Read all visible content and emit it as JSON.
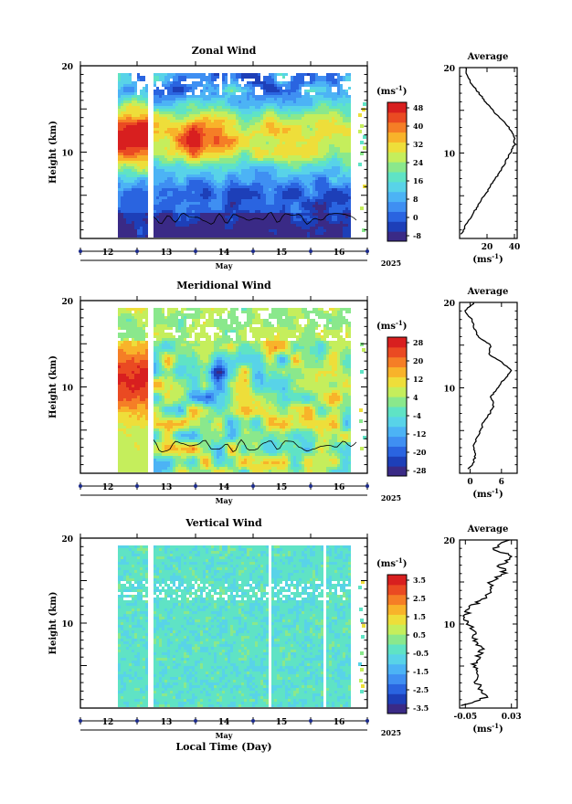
{
  "colors": {
    "zonal_scale": [
      "#3a2a86",
      "#1d3fb8",
      "#2a64e0",
      "#3f8ff2",
      "#4cb3f5",
      "#58d3e8",
      "#5fe3c5",
      "#8ae88c",
      "#c5ee5c",
      "#eede3a",
      "#f8b32a",
      "#f57e26",
      "#ea4a22",
      "#d81f1f"
    ],
    "meridional_scale": [
      "#3a2a86",
      "#1d3fb8",
      "#2a64e0",
      "#3f8ff2",
      "#4cb3f5",
      "#58d3e8",
      "#5fe3c5",
      "#8ae88c",
      "#c5ee5c",
      "#eede3a",
      "#f8b32a",
      "#f57e26",
      "#ea4a22",
      "#d81f1f"
    ],
    "vertical_scale": [
      "#3a2a86",
      "#1d3fb8",
      "#2a64e0",
      "#3f8ff2",
      "#4cb3f5",
      "#58d3e8",
      "#5fe3c5",
      "#8ae88c",
      "#c5ee5c",
      "#eede3a",
      "#f8b32a",
      "#f57e26",
      "#ea4a22",
      "#d81f1f"
    ],
    "day_marker": "#1b2a8a"
  },
  "chart_data": [
    {
      "type": "heatmap",
      "title": "Zonal Wind",
      "ylabel": "Height (km)",
      "ylim": [
        0,
        20
      ],
      "yticks": [
        "20",
        "10"
      ],
      "day_labels": [
        "12",
        "13",
        "14",
        "15",
        "16"
      ],
      "month_label": "May",
      "year_label": "2025",
      "colorbar": {
        "unit": "(ms",
        "unit_exp": "-1",
        "unit_close": ")",
        "labels": [
          "48",
          "40",
          "32",
          "24",
          "16",
          "8",
          "0",
          "-8"
        ],
        "range": [
          -8,
          48
        ]
      },
      "average": {
        "title": "Average",
        "xlabel": "(ms",
        "xlabel_exp": "-1",
        "xlabel_close": ")",
        "xticks": [
          "20",
          "40"
        ],
        "xlim": [
          0,
          42
        ],
        "heights": [
          0.5,
          2,
          4,
          6,
          8,
          10,
          11,
          12,
          13,
          14,
          15,
          16,
          17,
          18,
          19,
          20
        ],
        "values": [
          1,
          6,
          14,
          22,
          30,
          37,
          40,
          40,
          36,
          30,
          24,
          19,
          14,
          9,
          6,
          4
        ]
      }
    },
    {
      "type": "heatmap",
      "title": "Meridional Wind",
      "ylabel": "Height (km)",
      "ylim": [
        0,
        20
      ],
      "yticks": [
        "20",
        "10"
      ],
      "day_labels": [
        "12",
        "13",
        "14",
        "15",
        "16"
      ],
      "month_label": "May",
      "year_label": "2025",
      "colorbar": {
        "unit": "(ms",
        "unit_exp": "-1",
        "unit_close": ")",
        "labels": [
          "28",
          "20",
          "12",
          "4",
          "-4",
          "-12",
          "-20",
          "-28"
        ],
        "range": [
          -28,
          28
        ]
      },
      "average": {
        "title": "Average",
        "xlabel": "(ms",
        "xlabel_exp": "-1",
        "xlabel_close": ")",
        "xticks": [
          "0",
          "6"
        ],
        "xlim": [
          -2,
          9
        ],
        "heights": [
          0.5,
          1,
          2,
          3,
          4,
          5,
          6,
          7,
          8,
          9,
          10,
          11,
          12,
          13,
          14,
          15,
          16,
          17,
          18,
          19,
          20
        ],
        "values": [
          -0.5,
          0.5,
          1.0,
          0.6,
          1.2,
          2.0,
          2.6,
          3.8,
          4.5,
          4.0,
          5.2,
          6.5,
          8.0,
          6.0,
          3.5,
          4.0,
          1.5,
          0.8,
          0.3,
          -1.0,
          0.8
        ]
      }
    },
    {
      "type": "heatmap",
      "title": "Vertical Wind",
      "ylabel": "Height (km)",
      "ylim": [
        0,
        20
      ],
      "yticks": [
        "20",
        "10"
      ],
      "day_labels": [
        "12",
        "13",
        "14",
        "15",
        "16"
      ],
      "month_label": "May",
      "year_label": "2025",
      "xlabel": "Local Time (Day)",
      "colorbar": {
        "unit": "(ms",
        "unit_exp": "-1",
        "unit_close": ")",
        "labels": [
          "3.5",
          "2.5",
          "1.5",
          "0.5",
          "-0.5",
          "-1.5",
          "-2.5",
          "-3.5"
        ],
        "range": [
          -3.5,
          3.5
        ]
      },
      "average": {
        "title": "Average",
        "xlabel": "(ms",
        "xlabel_exp": "-1",
        "xlabel_close": ")",
        "xticks": [
          "-0.05",
          "0.03"
        ],
        "xlim": [
          -0.06,
          0.04
        ],
        "heights": [
          0.3,
          1,
          1.5,
          2,
          3,
          4,
          5,
          6,
          7,
          8,
          9,
          10,
          11,
          12,
          13,
          14,
          15,
          16,
          17,
          18,
          19,
          20
        ],
        "values": [
          -0.055,
          -0.02,
          -0.015,
          -0.02,
          -0.03,
          -0.025,
          -0.035,
          -0.03,
          -0.02,
          -0.035,
          -0.03,
          -0.045,
          -0.05,
          -0.04,
          -0.02,
          0.0,
          -0.01,
          0.02,
          0.01,
          0.03,
          0.0,
          0.025
        ]
      }
    }
  ]
}
